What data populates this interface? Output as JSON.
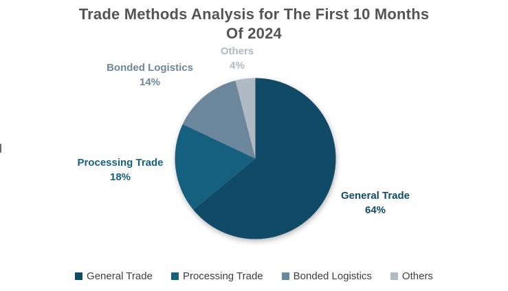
{
  "header": {
    "title_line1": "Trade Methods Analysis for The First 10 Months",
    "title_line2": "Of 2024",
    "title_color": "#545454"
  },
  "chart_data": {
    "type": "pie",
    "title": "Trade Methods Analysis for The First 10 Months Of 2024",
    "categories": [
      "General Trade",
      "Processing Trade",
      "Bonded Logistics",
      "Others"
    ],
    "values": [
      64,
      18,
      14,
      4
    ],
    "unit": "%",
    "start_angle_deg": 0,
    "direction": "clockwise",
    "legend_position": "bottom",
    "slices": [
      {
        "name": "General Trade",
        "percent": 64,
        "label": "General Trade",
        "value_label": "64%",
        "color": "#104A66"
      },
      {
        "name": "Processing Trade",
        "percent": 18,
        "label": "Processing Trade",
        "value_label": "18%",
        "color": "#16607F"
      },
      {
        "name": "Bonded Logistics",
        "percent": 14,
        "label": "Bonded Logistics",
        "value_label": "14%",
        "color": "#6C879B"
      },
      {
        "name": "Others",
        "percent": 4,
        "label": "Others",
        "value_label": "4%",
        "color": "#B0BAC4"
      }
    ]
  },
  "legend_text_color": "#3d3d3d"
}
